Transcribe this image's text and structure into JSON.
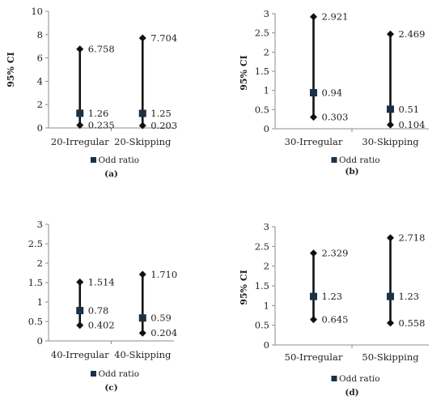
{
  "chart_data": [
    {
      "type": "scatter",
      "panel": "(a)",
      "ylabel": "95% CI",
      "ylim": [
        0,
        10
      ],
      "yticks": [
        "0",
        "2",
        "4",
        "6",
        "8",
        "10"
      ],
      "yvals": [
        0,
        2,
        4,
        6,
        8,
        10
      ],
      "categories": [
        "20-Irregular",
        "20-Skipping"
      ],
      "lower": [
        0.235,
        0.203
      ],
      "odds": [
        1.26,
        1.25
      ],
      "upper": [
        6.758,
        7.704
      ],
      "lower_labels": [
        "0.235",
        "0.203"
      ],
      "odds_labels": [
        "1.26",
        "1.25"
      ],
      "upper_labels": [
        "6.758",
        "7.704"
      ],
      "legend": "Odd ratio"
    },
    {
      "type": "scatter",
      "panel": "(b)",
      "ylabel": "95% CI",
      "ylim": [
        0,
        3
      ],
      "yticks": [
        "0",
        "0.5",
        "1",
        "1.5",
        "2",
        "2.5",
        "3"
      ],
      "yvals": [
        0,
        0.5,
        1,
        1.5,
        2,
        2.5,
        3
      ],
      "categories": [
        "30-Irregular",
        "30-Skipping"
      ],
      "lower": [
        0.303,
        0.104
      ],
      "odds": [
        0.94,
        0.51
      ],
      "upper": [
        2.921,
        2.469
      ],
      "lower_labels": [
        "0.303",
        "0.104"
      ],
      "odds_labels": [
        "0.94",
        "0.51"
      ],
      "upper_labels": [
        "2.921",
        "2.469"
      ],
      "legend": "Odd ratio"
    },
    {
      "type": "scatter",
      "panel": "(c)",
      "ylabel": "",
      "ylim": [
        0,
        3
      ],
      "yticks": [
        "0",
        "0.5",
        "1",
        "1.5",
        "2",
        "2.5",
        "3"
      ],
      "yvals": [
        0,
        0.5,
        1,
        1.5,
        2,
        2.5,
        3
      ],
      "categories": [
        "40-Irregular",
        "40-Skipping"
      ],
      "lower": [
        0.402,
        0.204
      ],
      "odds": [
        0.78,
        0.59
      ],
      "upper": [
        1.514,
        1.71
      ],
      "lower_labels": [
        "0.402",
        "0.204"
      ],
      "odds_labels": [
        "0.78",
        "0.59"
      ],
      "upper_labels": [
        "1.514",
        "1.710"
      ],
      "legend": "Odd ratio"
    },
    {
      "type": "scatter",
      "panel": "(d)",
      "ylabel": "95% CI",
      "ylim": [
        0,
        3
      ],
      "yticks": [
        "0",
        "0.5",
        "1",
        "1.5",
        "2",
        "2.5",
        "3"
      ],
      "yvals": [
        0,
        0.5,
        1,
        1.5,
        2,
        2.5,
        3
      ],
      "categories": [
        "50-Irregular",
        "50-Skipping"
      ],
      "lower": [
        0.645,
        0.558
      ],
      "odds": [
        1.23,
        1.23
      ],
      "upper": [
        2.329,
        2.718
      ],
      "lower_labels": [
        "0.645",
        "0.558"
      ],
      "odds_labels": [
        "1.23",
        "1.23"
      ],
      "upper_labels": [
        "2.329",
        "2.718"
      ],
      "legend": "Odd ratio"
    }
  ],
  "colors": {
    "ci_line": "#111111",
    "odds_marker": "#1b3146",
    "axis": "#8c8c8c"
  }
}
